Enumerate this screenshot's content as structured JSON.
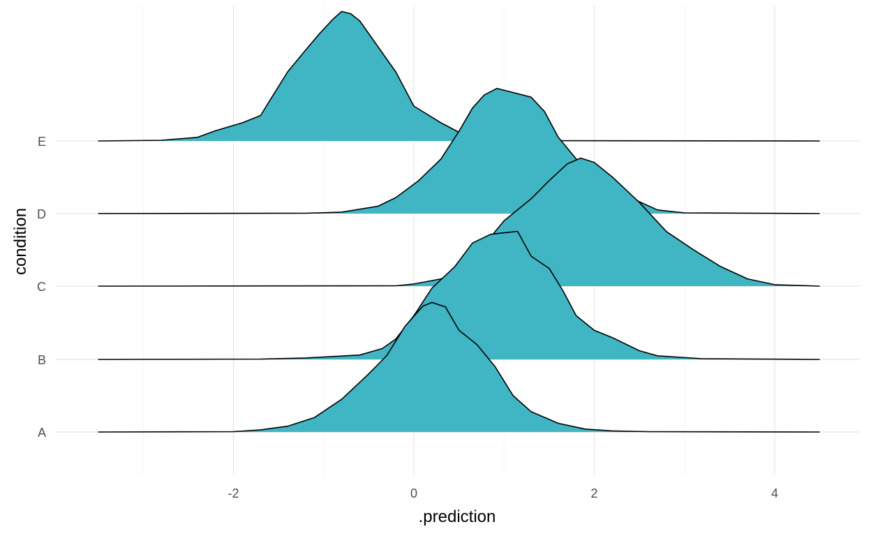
{
  "chart_data": {
    "type": "ridgeline",
    "xlabel": ".prediction",
    "ylabel": "condition",
    "xlim": [
      -4.0,
      4.92
    ],
    "x_ticks": [
      -2,
      0,
      2,
      4
    ],
    "x_tick_labels": [
      "-2",
      "0",
      "2",
      "4"
    ],
    "x_minor_ticks": [
      -3,
      -1,
      1,
      3
    ],
    "x_range": [
      -3.5,
      4.5
    ],
    "categories": [
      "A",
      "B",
      "C",
      "D",
      "E"
    ],
    "fill_color": "#40b5c4",
    "line_color": "#000000",
    "grid": true,
    "series": [
      {
        "name": "A",
        "points": [
          [
            -3.5,
            0
          ],
          [
            -2.0,
            0.005
          ],
          [
            -1.7,
            0.03
          ],
          [
            -1.4,
            0.08
          ],
          [
            -1.1,
            0.2
          ],
          [
            -0.8,
            0.45
          ],
          [
            -0.5,
            0.8
          ],
          [
            -0.3,
            1.05
          ],
          [
            -0.1,
            1.45
          ],
          [
            0.1,
            1.73
          ],
          [
            0.2,
            1.78
          ],
          [
            0.35,
            1.72
          ],
          [
            0.5,
            1.4
          ],
          [
            0.7,
            1.2
          ],
          [
            0.9,
            0.9
          ],
          [
            1.1,
            0.5
          ],
          [
            1.3,
            0.28
          ],
          [
            1.6,
            0.12
          ],
          [
            1.9,
            0.04
          ],
          [
            2.2,
            0.015
          ],
          [
            2.6,
            0.005
          ],
          [
            4.5,
            0
          ]
        ]
      },
      {
        "name": "B",
        "points": [
          [
            -3.5,
            0
          ],
          [
            -1.7,
            0.005
          ],
          [
            -1.2,
            0.02
          ],
          [
            -0.6,
            0.06
          ],
          [
            -0.35,
            0.15
          ],
          [
            -0.2,
            0.28
          ],
          [
            0.0,
            0.6
          ],
          [
            0.2,
            0.98
          ],
          [
            0.45,
            1.27
          ],
          [
            0.65,
            1.6
          ],
          [
            0.85,
            1.72
          ],
          [
            1.0,
            1.74
          ],
          [
            1.15,
            1.76
          ],
          [
            1.3,
            1.42
          ],
          [
            1.5,
            1.25
          ],
          [
            1.65,
            0.95
          ],
          [
            1.8,
            0.6
          ],
          [
            2.0,
            0.4
          ],
          [
            2.2,
            0.3
          ],
          [
            2.5,
            0.12
          ],
          [
            2.7,
            0.05
          ],
          [
            3.2,
            0.01
          ],
          [
            4.5,
            0
          ]
        ]
      },
      {
        "name": "C",
        "points": [
          [
            -3.5,
            0
          ],
          [
            -0.2,
            0.005
          ],
          [
            0.0,
            0.03
          ],
          [
            0.3,
            0.1
          ],
          [
            0.5,
            0.2
          ],
          [
            0.7,
            0.45
          ],
          [
            1.0,
            0.9
          ],
          [
            1.3,
            1.2
          ],
          [
            1.5,
            1.45
          ],
          [
            1.7,
            1.68
          ],
          [
            1.85,
            1.76
          ],
          [
            2.0,
            1.7
          ],
          [
            2.2,
            1.5
          ],
          [
            2.5,
            1.15
          ],
          [
            2.8,
            0.75
          ],
          [
            3.1,
            0.5
          ],
          [
            3.4,
            0.27
          ],
          [
            3.7,
            0.1
          ],
          [
            4.0,
            0.02
          ],
          [
            4.5,
            0
          ]
        ]
      },
      {
        "name": "D",
        "points": [
          [
            -3.5,
            0
          ],
          [
            -1.2,
            0.005
          ],
          [
            -0.8,
            0.02
          ],
          [
            -0.4,
            0.1
          ],
          [
            -0.2,
            0.22
          ],
          [
            0.05,
            0.45
          ],
          [
            0.3,
            0.75
          ],
          [
            0.5,
            1.13
          ],
          [
            0.65,
            1.45
          ],
          [
            0.78,
            1.63
          ],
          [
            0.92,
            1.72
          ],
          [
            1.05,
            1.68
          ],
          [
            1.3,
            1.6
          ],
          [
            1.45,
            1.4
          ],
          [
            1.6,
            1.05
          ],
          [
            1.8,
            0.75
          ],
          [
            2.0,
            0.52
          ],
          [
            2.2,
            0.38
          ],
          [
            2.4,
            0.22
          ],
          [
            2.7,
            0.05
          ],
          [
            3.0,
            0.01
          ],
          [
            4.5,
            0
          ]
        ]
      },
      {
        "name": "E",
        "points": [
          [
            -3.5,
            0
          ],
          [
            -2.8,
            0.01
          ],
          [
            -2.4,
            0.05
          ],
          [
            -2.2,
            0.14
          ],
          [
            -1.9,
            0.25
          ],
          [
            -1.7,
            0.35
          ],
          [
            -1.6,
            0.55
          ],
          [
            -1.4,
            0.95
          ],
          [
            -1.2,
            1.25
          ],
          [
            -1.05,
            1.47
          ],
          [
            -0.9,
            1.67
          ],
          [
            -0.8,
            1.78
          ],
          [
            -0.7,
            1.75
          ],
          [
            -0.6,
            1.65
          ],
          [
            -0.4,
            1.3
          ],
          [
            -0.2,
            0.95
          ],
          [
            0.0,
            0.48
          ],
          [
            0.3,
            0.25
          ],
          [
            0.5,
            0.12
          ],
          [
            0.9,
            0.03
          ],
          [
            1.3,
            0.005
          ],
          [
            4.5,
            0
          ]
        ]
      }
    ]
  }
}
